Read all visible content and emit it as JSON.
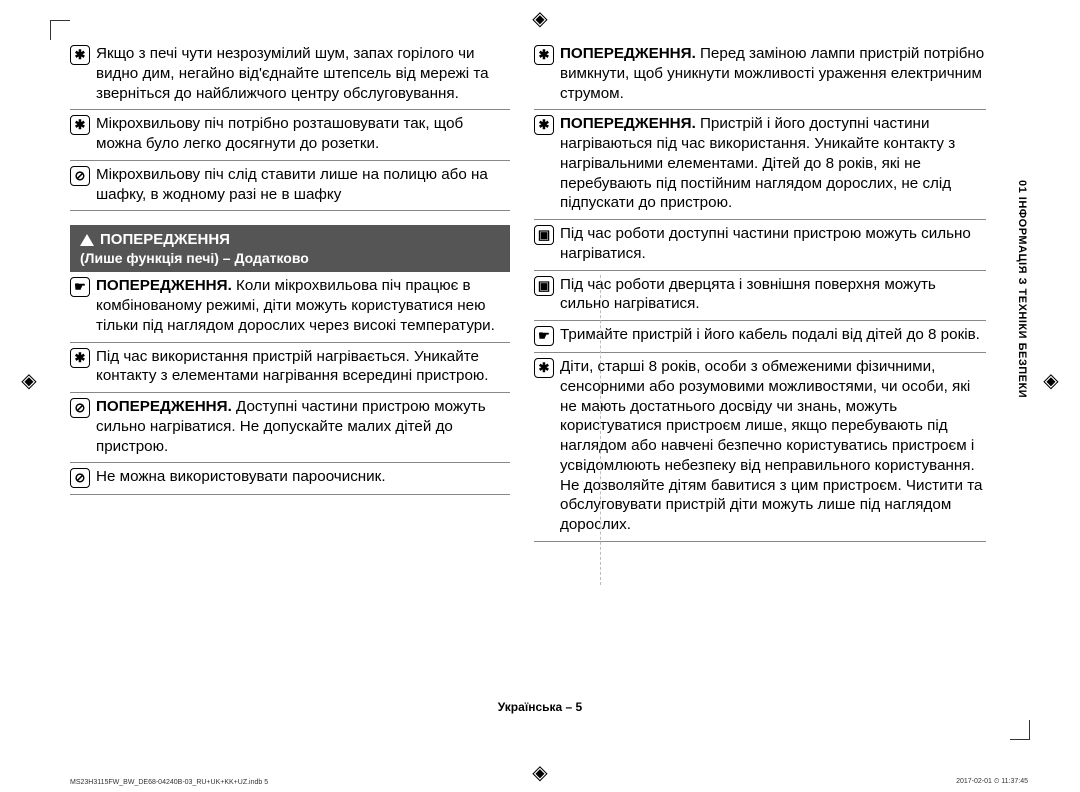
{
  "icons": {
    "star": "✱",
    "prohibit": "⊘",
    "hand": "☛",
    "hot": "☢"
  },
  "left": {
    "rows1": [
      {
        "icon": "star",
        "text": "Якщо з печі чути незрозумілий шум, запах горілого чи видно дим, негайно від'єднайте штепсель від мережі та зверніться до найближчого центру обслуговування."
      },
      {
        "icon": "star",
        "text": "Мікрохвильову піч потрібно розташовувати так, щоб можна було легко досягнути до розетки."
      },
      {
        "icon": "prohibit",
        "text": "Мікрохвильову піч слід ставити лише на полицю або на шафку, в жодному разі не в шафку"
      }
    ],
    "warning_title": "ПОПЕРЕДЖЕННЯ",
    "warning_sub": "(Лише функція печі) – Додатково",
    "rows2": [
      {
        "icon": "hand",
        "bold": "ПОПЕРЕДЖЕННЯ.",
        "text": " Коли мікрохвильова піч працює в комбінованому режимі, діти можуть користуватися нею тільки під наглядом дорослих через високі температури."
      },
      {
        "icon": "star",
        "text": "Під час використання пристрій нагрівається. Уникайте контакту з елементами нагрівання всередині пристрою."
      },
      {
        "icon": "prohibit",
        "bold": "ПОПЕРЕДЖЕННЯ.",
        "text": " Доступні частини пристрою можуть сильно нагріватися. Не допускайте малих дітей до пристрою."
      },
      {
        "icon": "prohibit",
        "text": "Не можна використовувати пароочисник."
      }
    ]
  },
  "right": {
    "rows": [
      {
        "icon": "star",
        "bold": "ПОПЕРЕДЖЕННЯ.",
        "text": " Перед заміною лампи пристрій потрібно вимкнути, щоб уникнути можливості ураження електричним струмом."
      },
      {
        "icon": "star",
        "bold": "ПОПЕРЕДЖЕННЯ.",
        "text": " Пристрій і його доступні частини нагріваються під час використання. Уникайте контакту з нагрівальними елементами. Дітей до 8 років, які не перебувають під постійним наглядом дорослих, не слід підпускати до пристрою."
      },
      {
        "icon": "hot",
        "text": "Під час роботи доступні частини пристрою можуть сильно нагріватися."
      },
      {
        "icon": "hot",
        "text": "Під час роботи дверцята і зовнішня поверхня можуть сильно нагріватися."
      },
      {
        "icon": "hand",
        "text": "Тримайте пристрій і його кабель подалі від дітей до 8 років."
      },
      {
        "icon": "star",
        "text": "Діти, старші 8 років, особи з обмеженими фізичними, сенсорними або розумовими можливостями, чи особи, які не мають достатнього досвіду чи знань, можуть користуватися пристроєм лише, якщо перебувають під наглядом або навчені безпечно користуватись пристроєм і усвідомлюють небезпеку від неправильного користування. Не дозволяйте дітям бавитися з цим пристроєм. Чистити та обслуговувати пристрій діти можуть лише під наглядом дорослих."
      }
    ]
  },
  "side_label": "01 ІНФОРМАЦІЯ З ТЕХНІКИ БЕЗПЕКИ",
  "footer": "Українська – 5",
  "tiny_left": "MS23H3115FW_BW_DE68-04240B-03_RU+UK+KK+UZ.indb   5",
  "tiny_right": "2017-02-01   ⏲ 11:37:45"
}
